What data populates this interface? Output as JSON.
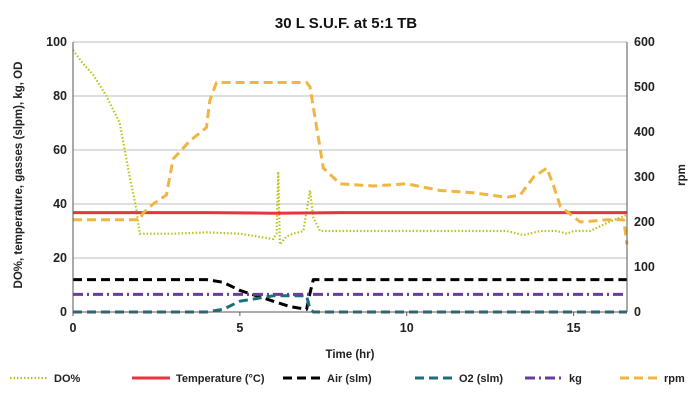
{
  "chart_data": {
    "type": "line",
    "title": "30 L S.U.F. at 5:1 TB",
    "xlabel": "Time (hr)",
    "ylabel": "DO%, temperature, gasses (slpm), kg, OD",
    "y2label": "rpm",
    "xlim": [
      0,
      16.6
    ],
    "ylim": [
      0,
      100
    ],
    "y2lim": [
      0,
      600
    ],
    "x_ticks": [
      "0",
      "5",
      "10",
      "15"
    ],
    "y_ticks": [
      "0",
      "20",
      "40",
      "60",
      "80",
      "100"
    ],
    "y2_ticks": [
      "0",
      "100",
      "200",
      "300",
      "400",
      "500",
      "600"
    ],
    "grid": true,
    "legend_position": "bottom",
    "series": [
      {
        "name": "DO%",
        "axis": "left",
        "color": "#b8c41c",
        "style": "dotted",
        "x": [
          0,
          0.3,
          0.6,
          1.0,
          1.4,
          1.7,
          1.9,
          2.0,
          2.2,
          3,
          4,
          5,
          5.5,
          6.0,
          6.1,
          6.15,
          6.2,
          6.4,
          6.6,
          6.9,
          7.1,
          7.2,
          7.4,
          8,
          9,
          10,
          11,
          12,
          13,
          13.5,
          14,
          14.5,
          14.8,
          15,
          15.5,
          16,
          16.6
        ],
        "y": [
          97,
          92,
          88,
          80,
          70,
          50,
          38,
          29,
          29,
          29,
          29.5,
          29,
          28,
          27,
          29,
          52,
          25,
          28,
          29,
          30,
          45,
          35,
          30,
          30,
          30,
          30,
          30,
          30,
          30,
          28.5,
          30,
          30,
          29,
          30,
          30,
          33,
          36
        ]
      },
      {
        "name": "Temperature (°C)",
        "axis": "left",
        "color": "#e8343e",
        "style": "solid",
        "x": [
          0,
          2,
          4,
          6,
          8,
          10,
          12,
          14,
          16.6
        ],
        "y": [
          36.8,
          36.8,
          36.8,
          36.6,
          36.8,
          36.8,
          36.8,
          36.8,
          36.8
        ]
      },
      {
        "name": "Air (slm)",
        "axis": "left",
        "color": "#000000",
        "style": "dashed",
        "x": [
          0,
          2,
          4,
          4.5,
          5,
          5.5,
          6,
          6.5,
          7.0,
          7.1,
          7.2,
          9,
          12,
          16.6
        ],
        "y": [
          12,
          12,
          12,
          11,
          8,
          6,
          4,
          2,
          1,
          7,
          12,
          12,
          12,
          12
        ]
      },
      {
        "name": "O2 (slm)",
        "axis": "left",
        "color": "#1b6f7a",
        "style": "dashed",
        "x": [
          0,
          4,
          4.5,
          5,
          5.5,
          6,
          6.5,
          7.0,
          7.1,
          7.2,
          10,
          16.6
        ],
        "y": [
          0,
          0,
          1,
          4,
          5,
          6,
          6,
          6,
          1,
          0,
          0,
          0
        ]
      },
      {
        "name": "kg",
        "axis": "left",
        "color": "#6a3d9a",
        "style": "dash-dot",
        "x": [
          0,
          4,
          8,
          12,
          16.6
        ],
        "y": [
          6.5,
          6.5,
          6.5,
          6.5,
          6.5
        ]
      },
      {
        "name": "rpm",
        "axis": "right",
        "color": "#f0b542",
        "style": "dashed",
        "x": [
          0,
          2.0,
          2.1,
          2.4,
          2.8,
          3.0,
          3.5,
          4.0,
          4.1,
          4.3,
          7.0,
          7.1,
          7.5,
          8,
          9,
          10,
          11,
          12,
          13,
          13.4,
          13.8,
          14.2,
          14.4,
          14.6,
          15.2,
          16,
          16.5,
          16.6
        ],
        "y": [
          205,
          205,
          220,
          240,
          260,
          340,
          380,
          410,
          470,
          510,
          510,
          500,
          320,
          285,
          280,
          285,
          270,
          265,
          255,
          260,
          300,
          320,
          280,
          235,
          200,
          205,
          205,
          150
        ]
      }
    ]
  },
  "legend": {
    "items": [
      {
        "label": "DO%",
        "color": "#b8c41c",
        "style": "dotted"
      },
      {
        "label": "Temperature (°C)",
        "color": "#e8343e",
        "style": "solid"
      },
      {
        "label": "Air (slm)",
        "color": "#000000",
        "style": "dashed"
      },
      {
        "label": "O2 (slm)",
        "color": "#1b6f7a",
        "style": "dashed"
      },
      {
        "label": "kg",
        "color": "#6a3d9a",
        "style": "dash-dot"
      },
      {
        "label": "rpm",
        "color": "#f0b542",
        "style": "dashed"
      }
    ]
  },
  "colors": {
    "grid": "#bdbdbd",
    "axis": "#555555"
  }
}
